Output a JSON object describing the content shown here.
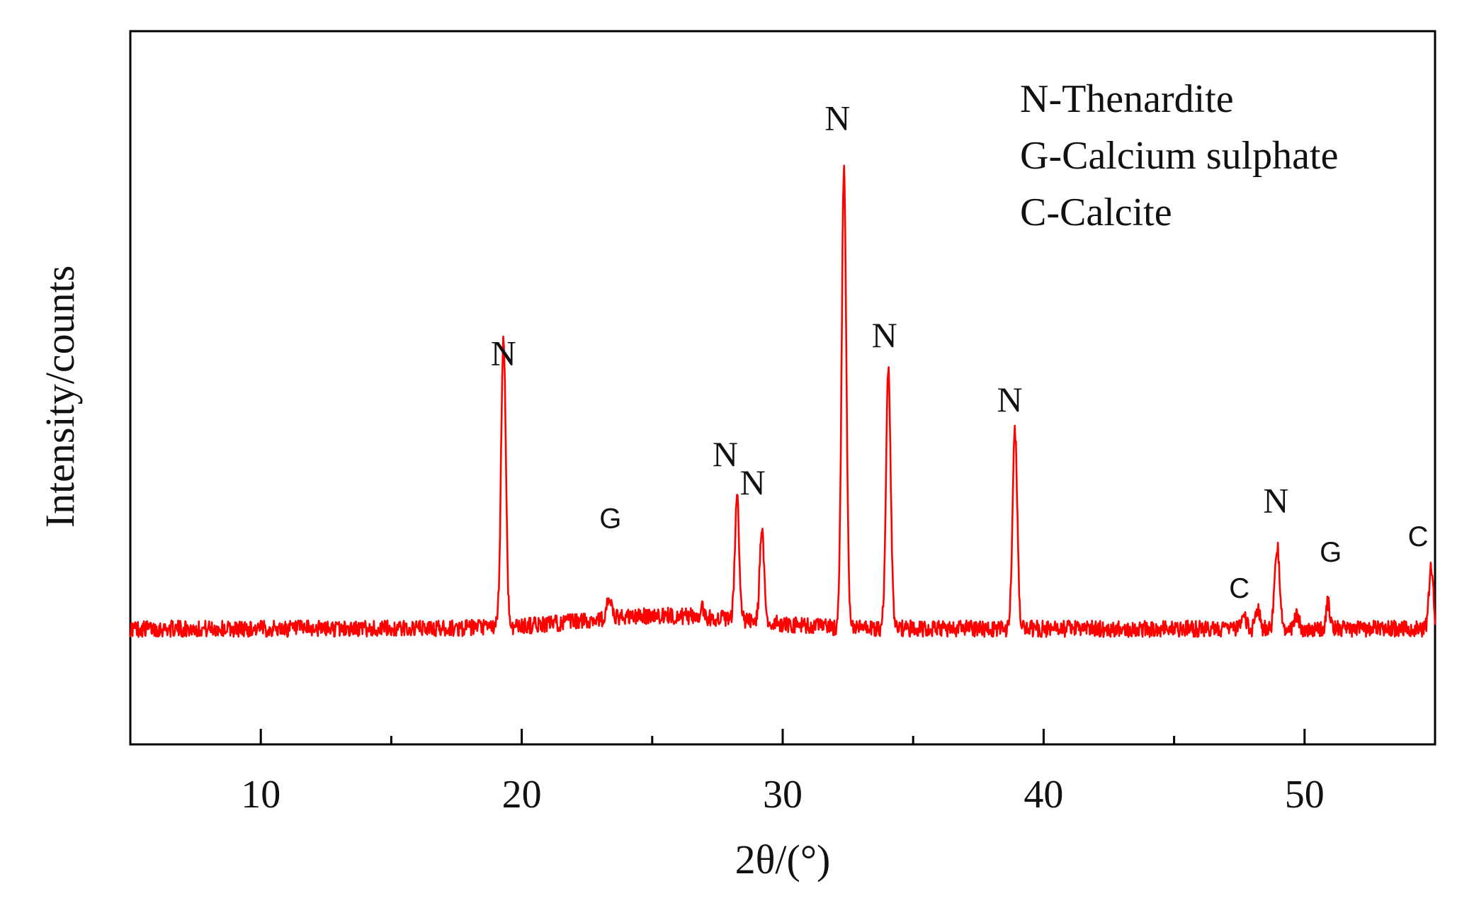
{
  "chart_data": {
    "type": "line",
    "title": "",
    "xlabel": "2θ/(°)",
    "ylabel": "Intensity/counts",
    "xlim": [
      5,
      55
    ],
    "ylim": [
      0,
      100
    ],
    "y_ticks_shown": false,
    "grid": false,
    "legend_placement": "top-right",
    "legend": [
      "N-Thenardite",
      "G-Calcium sulphate",
      "C-Calcite"
    ],
    "x_ticks": [
      10,
      20,
      30,
      40,
      50
    ],
    "x_tick_labels": [
      "10",
      "20",
      "30",
      "40",
      "50"
    ],
    "baseline_intensity": 11,
    "series": [
      {
        "color": "#ff0000",
        "peaks": [
          {
            "x": 19.3,
            "y": 56,
            "w": 0.09
          },
          {
            "x": 23.35,
            "y": 4,
            "w": 0.08
          },
          {
            "x": 26.9,
            "y": 3,
            "w": 0.05
          },
          {
            "x": 28.25,
            "y": 24,
            "w": 0.08
          },
          {
            "x": 29.2,
            "y": 18,
            "w": 0.08
          },
          {
            "x": 32.35,
            "y": 88,
            "w": 0.09
          },
          {
            "x": 34.05,
            "y": 50,
            "w": 0.09
          },
          {
            "x": 38.9,
            "y": 38,
            "w": 0.09
          },
          {
            "x": 47.7,
            "y": 2,
            "w": 0.08
          },
          {
            "x": 48.2,
            "y": 4,
            "w": 0.08
          },
          {
            "x": 48.95,
            "y": 16,
            "w": 0.09
          },
          {
            "x": 49.7,
            "y": 3,
            "w": 0.08
          },
          {
            "x": 50.9,
            "y": 5,
            "w": 0.07
          },
          {
            "x": 54.85,
            "y": 12,
            "w": 0.08
          }
        ]
      }
    ],
    "annotations": [
      {
        "text": "N",
        "x": 19.3,
        "y": 62,
        "size": "large"
      },
      {
        "text": "G",
        "x": 23.4,
        "y": 30.5,
        "size": "small"
      },
      {
        "text": "N",
        "x": 27.8,
        "y": 42.5,
        "size": "large"
      },
      {
        "text": "N",
        "x": 28.85,
        "y": 37,
        "size": "large"
      },
      {
        "text": "N",
        "x": 32.1,
        "y": 107.5,
        "size": "large"
      },
      {
        "text": "N",
        "x": 33.9,
        "y": 65.5,
        "size": "large"
      },
      {
        "text": "N",
        "x": 38.7,
        "y": 53,
        "size": "large"
      },
      {
        "text": "C",
        "x": 47.5,
        "y": 17,
        "size": "small"
      },
      {
        "text": "N",
        "x": 48.9,
        "y": 33.5,
        "size": "large"
      },
      {
        "text": "G",
        "x": 51.0,
        "y": 24,
        "size": "small"
      },
      {
        "text": "C",
        "x": 54.35,
        "y": 27,
        "size": "small"
      }
    ]
  }
}
